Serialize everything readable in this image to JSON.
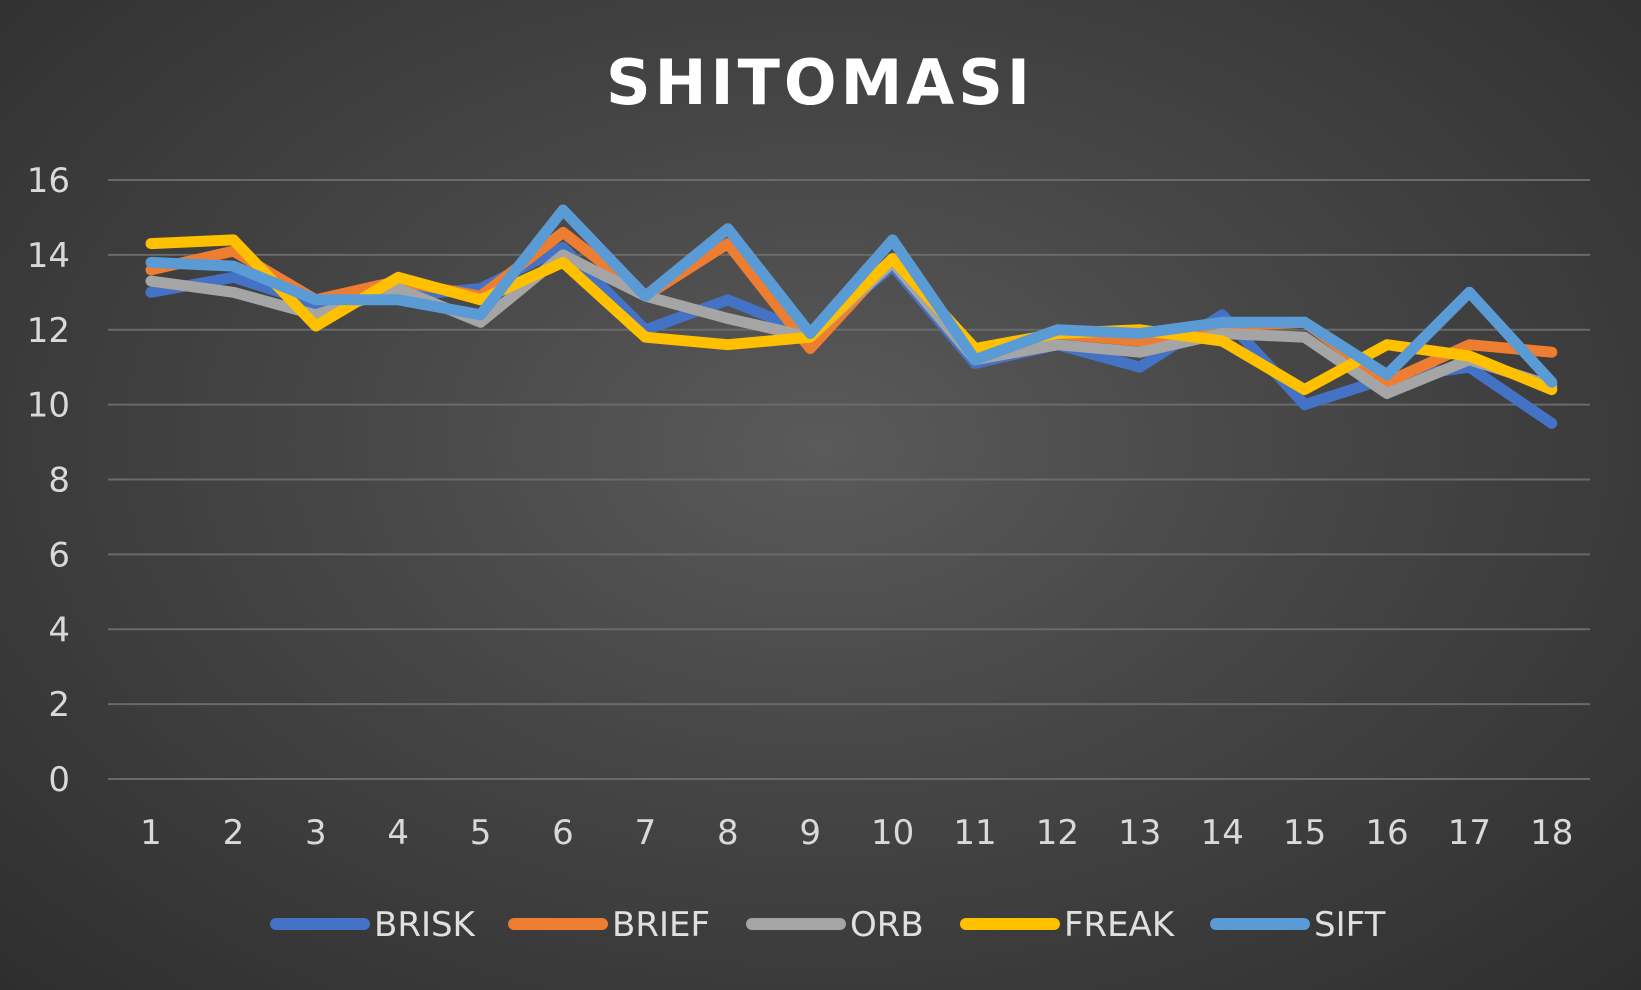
{
  "chart_data": {
    "type": "line",
    "title": "SHITOMASI",
    "xlabel": "",
    "ylabel": "",
    "categories": [
      "1",
      "2",
      "3",
      "4",
      "5",
      "6",
      "7",
      "8",
      "9",
      "10",
      "11",
      "12",
      "13",
      "14",
      "15",
      "16",
      "17",
      "18"
    ],
    "yticks": [
      "0",
      "2",
      "4",
      "6",
      "8",
      "10",
      "12",
      "14",
      "16"
    ],
    "ylim": [
      0,
      16
    ],
    "grid": true,
    "legend_position": "bottom",
    "series": [
      {
        "name": "BRISK",
        "color": "#4472c4",
        "values": [
          13.0,
          13.4,
          12.7,
          12.9,
          13.1,
          14.2,
          12.0,
          12.8,
          11.9,
          13.7,
          11.1,
          11.6,
          11.0,
          12.4,
          10.0,
          10.7,
          11.0,
          9.5
        ]
      },
      {
        "name": "BRIEF",
        "color": "#ed7d31",
        "values": [
          13.6,
          14.1,
          12.8,
          13.3,
          12.9,
          14.6,
          12.9,
          14.3,
          11.5,
          13.9,
          11.3,
          11.9,
          11.7,
          12.1,
          12.2,
          10.6,
          11.6,
          11.4
        ]
      },
      {
        "name": "ORB",
        "color": "#a5a5a5",
        "values": [
          13.3,
          13.0,
          12.4,
          13.1,
          12.2,
          14.0,
          12.9,
          12.3,
          11.8,
          13.8,
          11.2,
          11.6,
          11.4,
          11.9,
          11.8,
          10.3,
          11.2,
          10.5
        ]
      },
      {
        "name": "FREAK",
        "color": "#ffc000",
        "values": [
          14.3,
          14.4,
          12.1,
          13.4,
          12.8,
          13.8,
          11.8,
          11.6,
          11.8,
          13.9,
          11.5,
          11.9,
          12.0,
          11.7,
          10.4,
          11.6,
          11.3,
          10.4
        ]
      },
      {
        "name": "SIFT",
        "color": "#5b9bd5",
        "values": [
          13.8,
          13.7,
          12.8,
          12.8,
          12.4,
          15.2,
          12.9,
          14.7,
          11.9,
          14.4,
          11.2,
          12.0,
          11.9,
          12.2,
          12.2,
          10.8,
          13.0,
          10.6
        ]
      }
    ]
  }
}
